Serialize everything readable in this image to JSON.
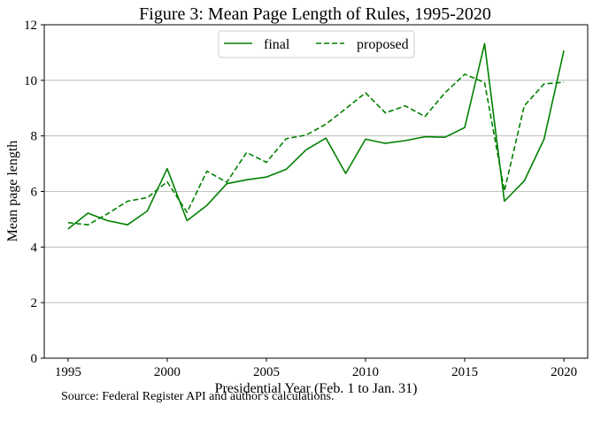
{
  "chart_data": {
    "type": "line",
    "title": "Figure 3: Mean Page Length of Rules, 1995-2020",
    "xlabel": "Presidential Year (Feb. 1 to Jan. 31)",
    "ylabel": "Mean page length",
    "xlim": [
      1993.8,
      2021.2
    ],
    "ylim": [
      0,
      12
    ],
    "xticks": [
      1995,
      2000,
      2005,
      2010,
      2015,
      2020
    ],
    "yticks": [
      0,
      2,
      4,
      6,
      8,
      10,
      12
    ],
    "grid": "horizontal",
    "legend_position": "top-center",
    "x": [
      1995,
      1996,
      1997,
      1998,
      1999,
      2000,
      2001,
      2002,
      2003,
      2004,
      2005,
      2006,
      2007,
      2008,
      2009,
      2010,
      2011,
      2012,
      2013,
      2014,
      2015,
      2016,
      2017,
      2018,
      2019,
      2020
    ],
    "series": [
      {
        "name": "final",
        "style": "solid",
        "color": "#008000",
        "values": [
          4.65,
          5.22,
          4.95,
          4.8,
          5.3,
          6.82,
          4.95,
          5.5,
          6.28,
          6.42,
          6.52,
          6.8,
          7.5,
          7.92,
          6.65,
          7.88,
          7.73,
          7.83,
          7.97,
          7.95,
          8.3,
          11.32,
          5.65,
          6.38,
          7.88,
          11.07
        ]
      },
      {
        "name": "proposed",
        "style": "dashed",
        "color": "#008000",
        "values": [
          4.88,
          4.8,
          5.2,
          5.65,
          5.78,
          6.35,
          5.25,
          6.73,
          6.33,
          7.4,
          7.05,
          7.9,
          8.03,
          8.42,
          8.98,
          9.55,
          8.83,
          9.08,
          8.7,
          9.55,
          10.22,
          9.92,
          6.02,
          9.08,
          9.87,
          9.93
        ]
      }
    ]
  },
  "footer": {
    "source": "Source: Federal Register API and author's calculations."
  }
}
